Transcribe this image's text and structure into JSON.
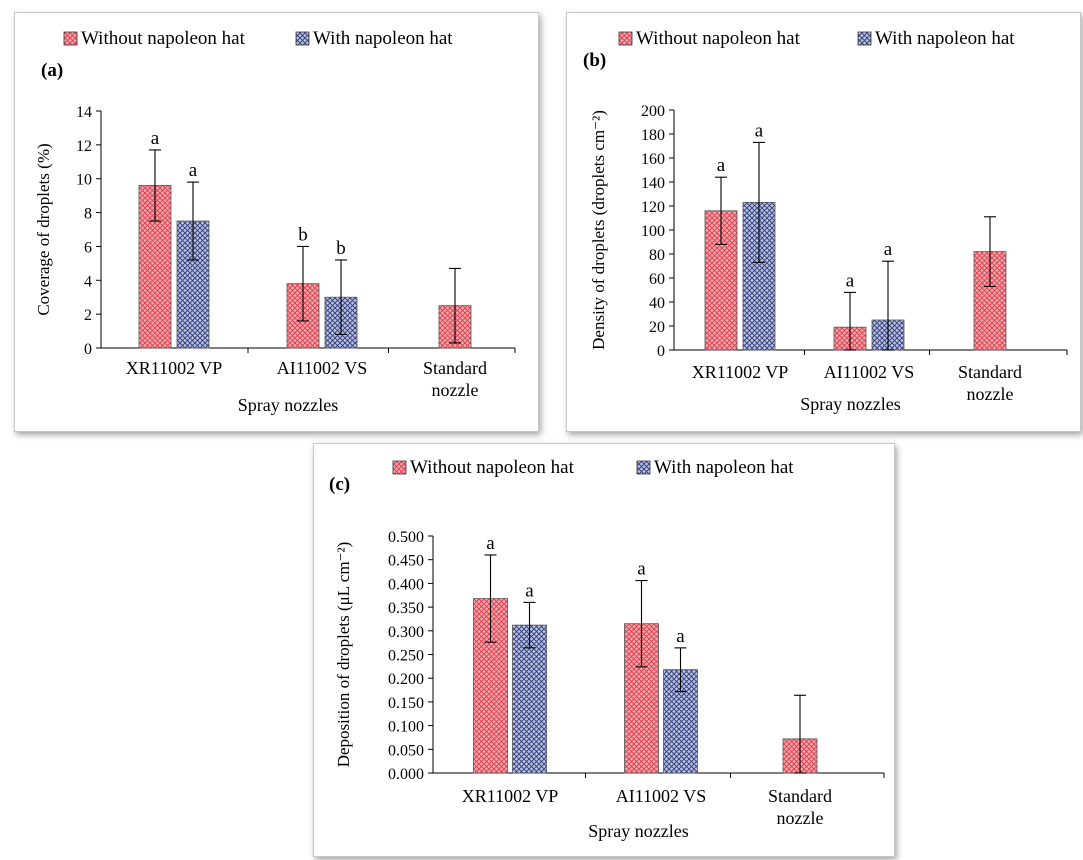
{
  "colors": {
    "without_fill": "#f0a8ac",
    "without_pattern": "#e03a4a",
    "with_fill": "#b8c2de",
    "with_pattern": "#2e3a7a"
  },
  "chart_data": [
    {
      "type": "bar",
      "panel_label": "(a)",
      "title": "",
      "xlabel": "Spray nozzles",
      "ylabel": "Coverage of droplets (%)",
      "ylim": [
        0,
        14
      ],
      "yticks": [
        "0",
        "2",
        "4",
        "6",
        "8",
        "10",
        "12",
        "14"
      ],
      "categories": [
        [
          "XR11002 VP"
        ],
        [
          "AI11002 VS"
        ],
        [
          "Standard",
          "nozzle"
        ]
      ],
      "legend": [
        "Without napoleon hat",
        "With napoleon hat"
      ],
      "legend_position": "top",
      "series": [
        {
          "name": "Without napoleon hat",
          "values": [
            9.6,
            3.8,
            2.5
          ],
          "errors": [
            2.1,
            2.2,
            2.2
          ],
          "letters": [
            "a",
            "b",
            ""
          ]
        },
        {
          "name": "With napoleon hat",
          "values": [
            7.5,
            3.0,
            null
          ],
          "errors": [
            2.3,
            2.2,
            null
          ],
          "letters": [
            "a",
            "b",
            ""
          ]
        }
      ]
    },
    {
      "type": "bar",
      "panel_label": "(b)",
      "title": "",
      "xlabel": "Spray nozzles",
      "ylabel": "Density of droplets  (droplets cm⁻²)",
      "ylim": [
        0,
        200
      ],
      "yticks": [
        "0",
        "20",
        "40",
        "60",
        "80",
        "100",
        "120",
        "140",
        "160",
        "180",
        "200"
      ],
      "categories": [
        [
          "XR11002 VP"
        ],
        [
          "AI11002 VS"
        ],
        [
          "Standard",
          "nozzle"
        ]
      ],
      "legend": [
        "Without napoleon hat",
        "With napoleon hat"
      ],
      "legend_position": "top",
      "series": [
        {
          "name": "Without napoleon hat",
          "values": [
            116,
            19,
            82
          ],
          "errors": [
            28,
            29,
            29
          ],
          "letters": [
            "a",
            "a",
            ""
          ]
        },
        {
          "name": "With napoleon hat",
          "values": [
            123,
            25,
            null
          ],
          "errors": [
            50,
            49,
            null
          ],
          "letters": [
            "a",
            "a",
            ""
          ]
        }
      ]
    },
    {
      "type": "bar",
      "panel_label": "(c)",
      "title": "",
      "xlabel": "Spray nozzles",
      "ylabel": "Deposition of droplets (μL cm⁻²)",
      "ylim": [
        0,
        0.5
      ],
      "yticks": [
        "0.000",
        "0.050",
        "0.100",
        "0.150",
        "0.200",
        "0.250",
        "0.300",
        "0.350",
        "0.400",
        "0.450",
        "0.500"
      ],
      "categories": [
        [
          "XR11002 VP"
        ],
        [
          "AI11002 VS"
        ],
        [
          "Standard",
          "nozzle"
        ]
      ],
      "legend": [
        "Without napoleon hat",
        "With napoleon hat"
      ],
      "legend_position": "top",
      "series": [
        {
          "name": "Without napoleon hat",
          "values": [
            0.368,
            0.315,
            0.072
          ],
          "errors": [
            0.092,
            0.091,
            0.092
          ],
          "letters": [
            "a",
            "a",
            ""
          ]
        },
        {
          "name": "With napoleon hat",
          "values": [
            0.312,
            0.218,
            null
          ],
          "errors": [
            0.048,
            0.046,
            null
          ],
          "letters": [
            "a",
            "a",
            ""
          ]
        }
      ]
    }
  ]
}
